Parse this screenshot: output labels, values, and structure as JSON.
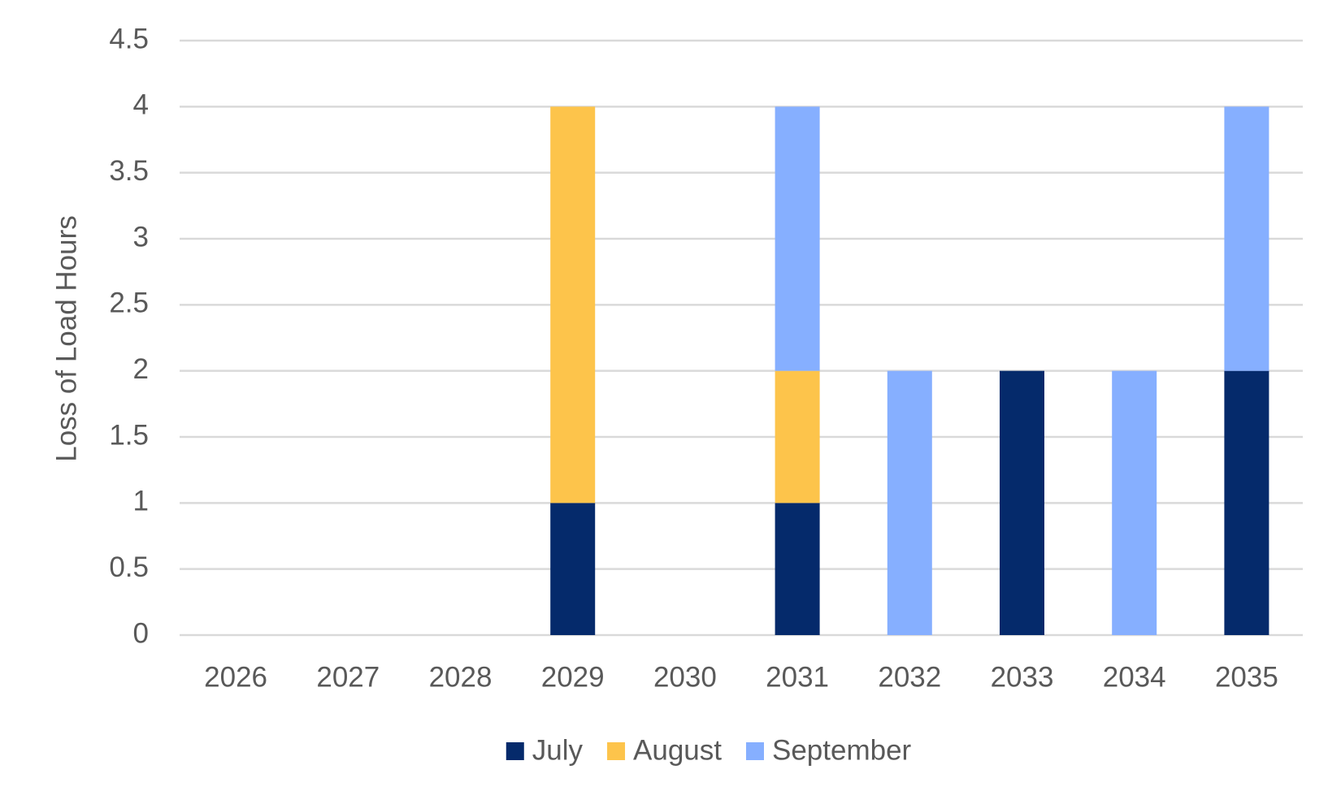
{
  "chart_data": {
    "type": "stacked_bar",
    "y_label": "Loss of Load Hours",
    "categories": [
      "2026",
      "2027",
      "2028",
      "2029",
      "2030",
      "2031",
      "2032",
      "2033",
      "2034",
      "2035"
    ],
    "series": [
      {
        "name": "July",
        "color": "#052a6b",
        "values": [
          0,
          0,
          0,
          1,
          0,
          1,
          0,
          2,
          0,
          2
        ]
      },
      {
        "name": "August",
        "color": "#fdc44b",
        "values": [
          0,
          0,
          0,
          3,
          0,
          1,
          0,
          0,
          0,
          0
        ]
      },
      {
        "name": "September",
        "color": "#86afff",
        "values": [
          0,
          0,
          0,
          0,
          0,
          2,
          2,
          0,
          2,
          2
        ]
      }
    ],
    "ylim": [
      0,
      4.5
    ],
    "yticks": [
      0,
      0.5,
      1,
      1.5,
      2,
      2.5,
      3,
      3.5,
      4,
      4.5
    ],
    "grid": true,
    "legend": "bottom"
  }
}
